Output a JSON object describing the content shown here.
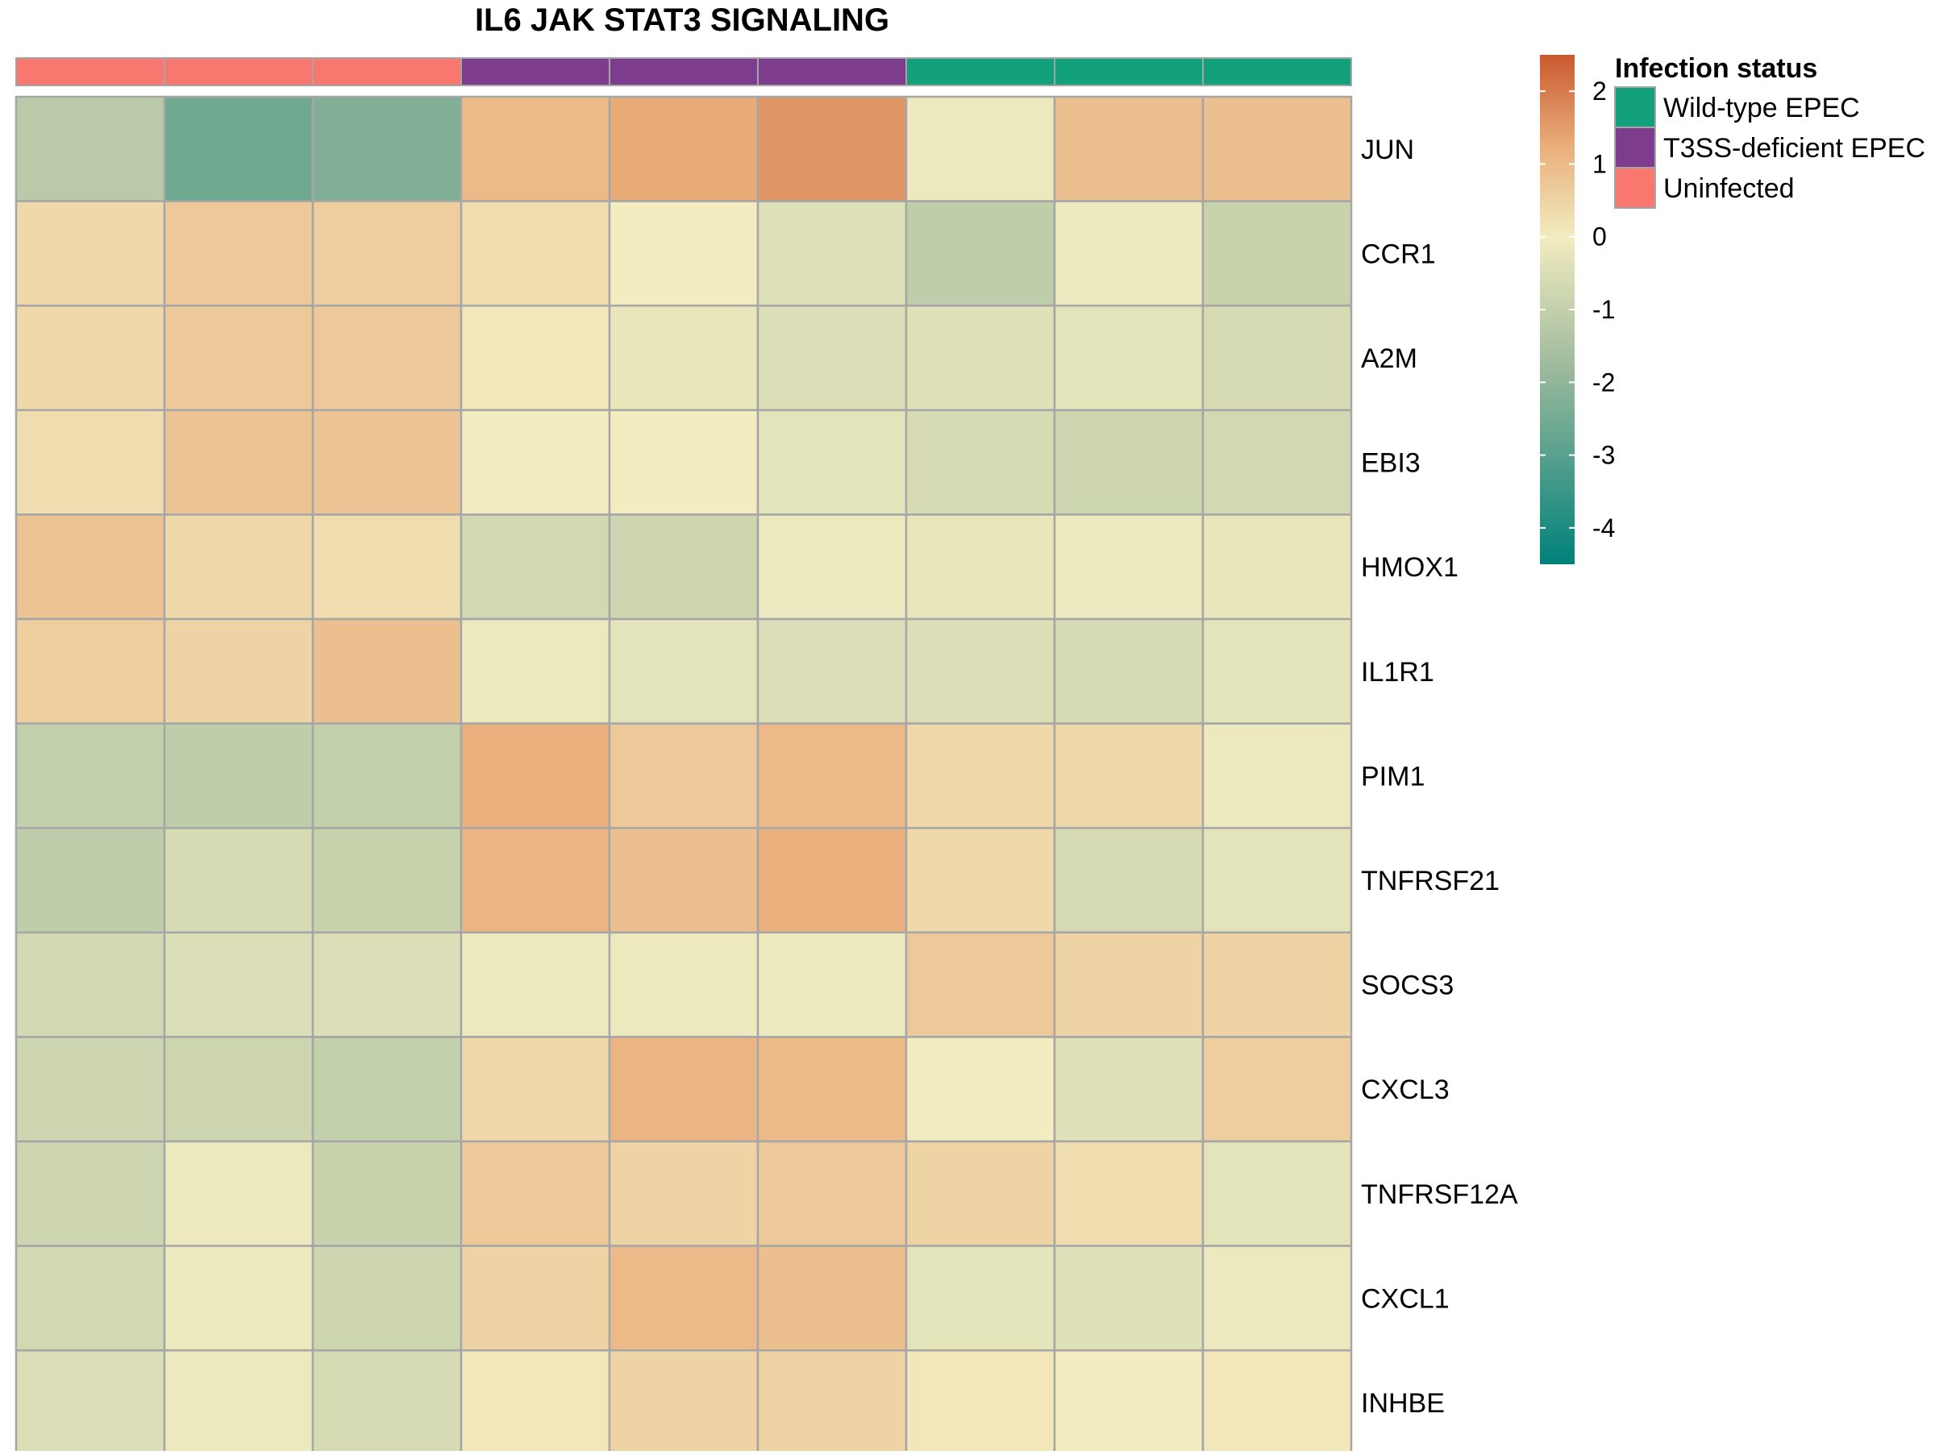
{
  "chart_data": {
    "type": "heatmap",
    "title": "IL6 JAK STAT3 SIGNALING",
    "rows": [
      "JUN",
      "CCR1",
      "A2M",
      "EBI3",
      "HMOX1",
      "IL1R1",
      "PIM1",
      "TNFRSF21",
      "SOCS3",
      "CXCL3",
      "TNFRSF12A",
      "CXCL1",
      "INHBE"
    ],
    "column_groups": [
      "Uninfected",
      "Uninfected",
      "Uninfected",
      "T3SS-deficient EPEC",
      "T3SS-deficient EPEC",
      "T3SS-deficient EPEC",
      "Wild-type EPEC",
      "Wild-type EPEC",
      "Wild-type EPEC"
    ],
    "values": [
      [
        -1.2,
        -2.6,
        -2.3,
        1.0,
        1.3,
        1.6,
        -0.1,
        0.9,
        0.9
      ],
      [
        0.4,
        0.7,
        0.6,
        0.3,
        0.0,
        -0.4,
        -1.1,
        -0.1,
        -0.9
      ],
      [
        0.4,
        0.7,
        0.7,
        0.1,
        -0.2,
        -0.5,
        -0.4,
        -0.3,
        -0.6
      ],
      [
        0.3,
        0.8,
        0.8,
        0.0,
        0.0,
        -0.3,
        -0.6,
        -0.8,
        -0.7
      ],
      [
        0.8,
        0.4,
        0.3,
        -0.7,
        -0.8,
        -0.1,
        -0.2,
        -0.1,
        -0.2
      ],
      [
        0.6,
        0.5,
        0.9,
        -0.1,
        -0.3,
        -0.5,
        -0.5,
        -0.6,
        -0.3
      ],
      [
        -1.0,
        -1.1,
        -1.0,
        1.2,
        0.7,
        1.0,
        0.4,
        0.4,
        -0.1
      ],
      [
        -1.1,
        -0.6,
        -0.9,
        1.1,
        0.9,
        1.2,
        0.4,
        -0.6,
        -0.3
      ],
      [
        -0.7,
        -0.5,
        -0.5,
        -0.1,
        -0.1,
        -0.1,
        0.7,
        0.5,
        0.5
      ],
      [
        -0.8,
        -0.8,
        -1.0,
        0.4,
        1.1,
        1.0,
        0.0,
        -0.4,
        0.6
      ],
      [
        -0.8,
        -0.1,
        -0.9,
        0.7,
        0.5,
        0.7,
        0.5,
        0.3,
        -0.3
      ],
      [
        -0.7,
        -0.1,
        -0.8,
        0.5,
        1.0,
        0.9,
        -0.3,
        -0.4,
        -0.1
      ],
      [
        -0.5,
        -0.1,
        -0.6,
        0.1,
        0.5,
        0.5,
        0.1,
        0.0,
        0.1
      ]
    ],
    "color_scale": {
      "min": -4.5,
      "max": 2.5,
      "ticks": [
        2,
        1,
        0,
        -1,
        -2,
        -3,
        -4
      ],
      "stops": [
        {
          "value": -4.5,
          "color": "#00817A"
        },
        {
          "value": -1.75,
          "color": "#A0BB9D"
        },
        {
          "value": 0,
          "color": "#F2ECC0"
        },
        {
          "value": 1.25,
          "color": "#E9AE7A"
        },
        {
          "value": 2.5,
          "color": "#C9592F"
        }
      ]
    },
    "legend": {
      "title": "Infection status",
      "entries": [
        {
          "label": "Wild-type EPEC",
          "color": "#13A17B"
        },
        {
          "label": "T3SS-deficient EPEC",
          "color": "#7D3C8E"
        },
        {
          "label": "Uninfected",
          "color": "#F8786F"
        }
      ],
      "placement": "right"
    },
    "grid_color": "#A6A6A6"
  }
}
